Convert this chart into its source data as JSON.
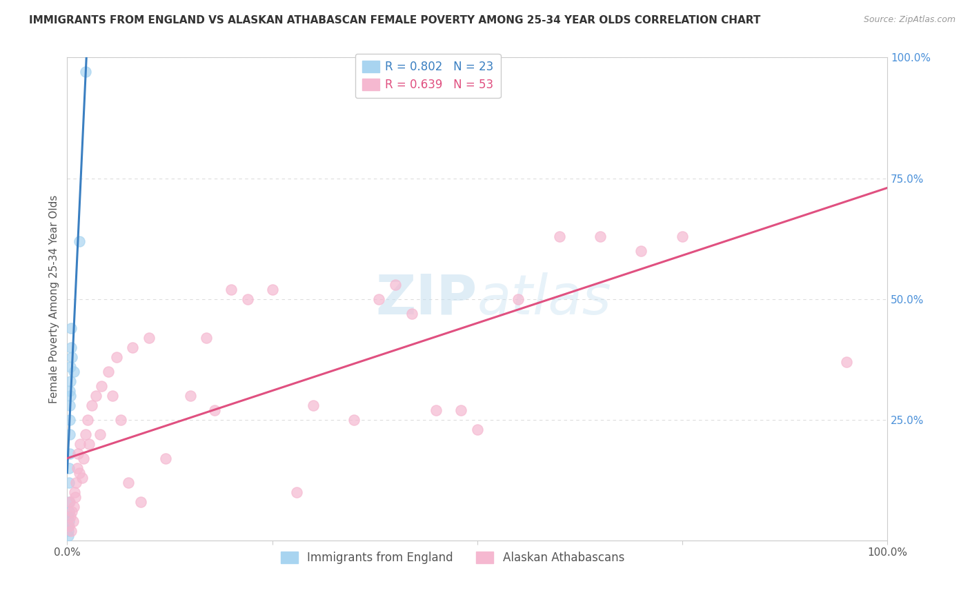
{
  "title": "IMMIGRANTS FROM ENGLAND VS ALASKAN ATHABASCAN FEMALE POVERTY AMONG 25-34 YEAR OLDS CORRELATION CHART",
  "source": "Source: ZipAtlas.com",
  "ylabel": "Female Poverty Among 25-34 Year Olds",
  "xlim": [
    0,
    1
  ],
  "ylim": [
    0,
    1
  ],
  "xticks": [
    0.0,
    0.25,
    0.5,
    0.75,
    1.0
  ],
  "xticklabels": [
    "0.0%",
    "",
    "",
    "",
    "100.0%"
  ],
  "ytick_positions": [
    0.0,
    0.25,
    0.5,
    0.75,
    1.0
  ],
  "ytick_labels": [
    "",
    "25.0%",
    "50.0%",
    "75.0%",
    "100.0%"
  ],
  "legend_items": [
    {
      "label": "R = 0.802   N = 23",
      "color": "#a8d4f0"
    },
    {
      "label": "R = 0.639   N = 53",
      "color": "#f5b8d0"
    }
  ],
  "legend_labels_bottom": [
    "Immigrants from England",
    "Alaskan Athabascans"
  ],
  "blue_scatter": [
    [
      0.001,
      0.01
    ],
    [
      0.001,
      0.02
    ],
    [
      0.001,
      0.03
    ],
    [
      0.001,
      0.05
    ],
    [
      0.002,
      0.04
    ],
    [
      0.002,
      0.06
    ],
    [
      0.002,
      0.08
    ],
    [
      0.002,
      0.12
    ],
    [
      0.002,
      0.15
    ],
    [
      0.003,
      0.18
    ],
    [
      0.003,
      0.22
    ],
    [
      0.003,
      0.25
    ],
    [
      0.003,
      0.28
    ],
    [
      0.003,
      0.31
    ],
    [
      0.004,
      0.3
    ],
    [
      0.004,
      0.33
    ],
    [
      0.004,
      0.36
    ],
    [
      0.005,
      0.4
    ],
    [
      0.005,
      0.44
    ],
    [
      0.006,
      0.38
    ],
    [
      0.008,
      0.35
    ],
    [
      0.015,
      0.62
    ],
    [
      0.022,
      0.97
    ]
  ],
  "pink_scatter": [
    [
      0.002,
      0.03
    ],
    [
      0.003,
      0.08
    ],
    [
      0.004,
      0.05
    ],
    [
      0.005,
      0.02
    ],
    [
      0.006,
      0.06
    ],
    [
      0.007,
      0.04
    ],
    [
      0.008,
      0.07
    ],
    [
      0.009,
      0.1
    ],
    [
      0.01,
      0.09
    ],
    [
      0.011,
      0.12
    ],
    [
      0.012,
      0.15
    ],
    [
      0.013,
      0.18
    ],
    [
      0.015,
      0.14
    ],
    [
      0.016,
      0.2
    ],
    [
      0.018,
      0.13
    ],
    [
      0.02,
      0.17
    ],
    [
      0.022,
      0.22
    ],
    [
      0.025,
      0.25
    ],
    [
      0.027,
      0.2
    ],
    [
      0.03,
      0.28
    ],
    [
      0.035,
      0.3
    ],
    [
      0.04,
      0.22
    ],
    [
      0.042,
      0.32
    ],
    [
      0.05,
      0.35
    ],
    [
      0.055,
      0.3
    ],
    [
      0.06,
      0.38
    ],
    [
      0.065,
      0.25
    ],
    [
      0.075,
      0.12
    ],
    [
      0.08,
      0.4
    ],
    [
      0.09,
      0.08
    ],
    [
      0.1,
      0.42
    ],
    [
      0.12,
      0.17
    ],
    [
      0.15,
      0.3
    ],
    [
      0.17,
      0.42
    ],
    [
      0.18,
      0.27
    ],
    [
      0.2,
      0.52
    ],
    [
      0.22,
      0.5
    ],
    [
      0.25,
      0.52
    ],
    [
      0.28,
      0.1
    ],
    [
      0.3,
      0.28
    ],
    [
      0.35,
      0.25
    ],
    [
      0.38,
      0.5
    ],
    [
      0.4,
      0.53
    ],
    [
      0.42,
      0.47
    ],
    [
      0.45,
      0.27
    ],
    [
      0.48,
      0.27
    ],
    [
      0.5,
      0.23
    ],
    [
      0.55,
      0.5
    ],
    [
      0.6,
      0.63
    ],
    [
      0.65,
      0.63
    ],
    [
      0.7,
      0.6
    ],
    [
      0.75,
      0.63
    ],
    [
      0.95,
      0.37
    ]
  ],
  "blue_line": {
    "x": [
      0.0,
      0.024
    ],
    "y": [
      0.14,
      1.02
    ]
  },
  "pink_line": {
    "x": [
      0.0,
      1.0
    ],
    "y": [
      0.17,
      0.73
    ]
  },
  "blue_color": "#a8d4f0",
  "pink_color": "#f5b8d0",
  "blue_line_color": "#3a7fc1",
  "pink_line_color": "#e05080",
  "watermark_zip": "ZIP",
  "watermark_atlas": "atlas",
  "background_color": "#ffffff",
  "grid_color": "#dddddd",
  "ytick_color": "#4a90d9",
  "title_color": "#333333",
  "source_color": "#999999"
}
